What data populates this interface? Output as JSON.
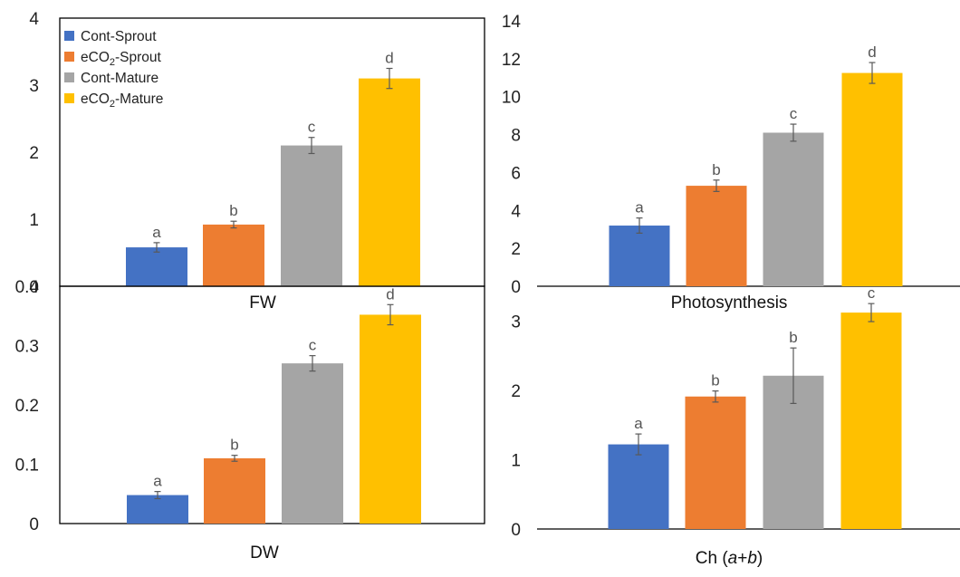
{
  "colors": {
    "Cont-Sprout": "#4472c4",
    "eCO2-Sprout": "#ed7d31",
    "Cont-Mature": "#a5a5a5",
    "eCO2-Mature": "#ffc000",
    "axis": "#000000",
    "errorbar": "#595959"
  },
  "legend": {
    "position": "top-left of FW panel",
    "entries": [
      {
        "key": "Cont-Sprout",
        "text": "Cont-Sprout"
      },
      {
        "key": "eCO2-Sprout",
        "text": "eCO",
        "sub": "2",
        "suffix": "-Sprout"
      },
      {
        "key": "Cont-Mature",
        "text": "Cont-Mature"
      },
      {
        "key": "eCO2-Mature",
        "text": "eCO",
        "sub": "2",
        "suffix": "-Mature"
      }
    ]
  },
  "chart_data": [
    {
      "type": "bar",
      "xlabel": "FW",
      "categories": [
        "Cont-Sprout",
        "eCO2-Sprout",
        "Cont-Mature",
        "eCO2-Mature"
      ],
      "values": [
        0.58,
        0.92,
        2.1,
        3.1
      ],
      "errors": [
        0.07,
        0.05,
        0.12,
        0.15
      ],
      "letters": [
        "a",
        "b",
        "c",
        "d"
      ],
      "ylim": [
        0,
        4
      ],
      "yticks": [
        "0",
        "1",
        "2",
        "3",
        "4"
      ],
      "grid": false
    },
    {
      "type": "bar",
      "xlabel": "Photosynthesis",
      "categories": [
        "Cont-Sprout",
        "eCO2-Sprout",
        "Cont-Mature",
        "eCO2-Mature"
      ],
      "values": [
        3.2,
        5.3,
        8.1,
        11.25
      ],
      "errors": [
        0.4,
        0.3,
        0.45,
        0.55
      ],
      "letters": [
        "a",
        "b",
        "c",
        "d"
      ],
      "ylim": [
        0,
        14
      ],
      "yticks": [
        "0",
        "2",
        "4",
        "6",
        "8",
        "10",
        "12",
        "14"
      ],
      "grid": false
    },
    {
      "type": "bar",
      "xlabel": "DW",
      "categories": [
        "Cont-Sprout",
        "eCO2-Sprout",
        "Cont-Mature",
        "eCO2-Mature"
      ],
      "values": [
        0.048,
        0.11,
        0.27,
        0.352
      ],
      "errors": [
        0.006,
        0.005,
        0.013,
        0.017
      ],
      "letters": [
        "a",
        "b",
        "c",
        "d"
      ],
      "ylim": [
        0,
        0.4
      ],
      "yticks": [
        "0",
        "0.1",
        "0.2",
        "0.3",
        "0.4"
      ],
      "grid": false
    },
    {
      "type": "bar",
      "xlabel": "Ch (a+b)",
      "xlabel_parts": [
        {
          "text": "Ch (",
          "italic": false
        },
        {
          "text": "a",
          "italic": true
        },
        {
          "text": "+",
          "italic": false
        },
        {
          "text": "b",
          "italic": true
        },
        {
          "text": ")",
          "italic": false
        }
      ],
      "categories": [
        "Cont-Sprout",
        "eCO2-Sprout",
        "Cont-Mature",
        "eCO2-Mature"
      ],
      "values": [
        1.22,
        1.91,
        2.21,
        3.12
      ],
      "errors": [
        0.15,
        0.08,
        0.4,
        0.13
      ],
      "letters": [
        "a",
        "b",
        "b",
        "c"
      ],
      "ylim": [
        0,
        3.5
      ],
      "yticks": [
        "0",
        "1",
        "2",
        "3"
      ],
      "grid": false
    }
  ]
}
